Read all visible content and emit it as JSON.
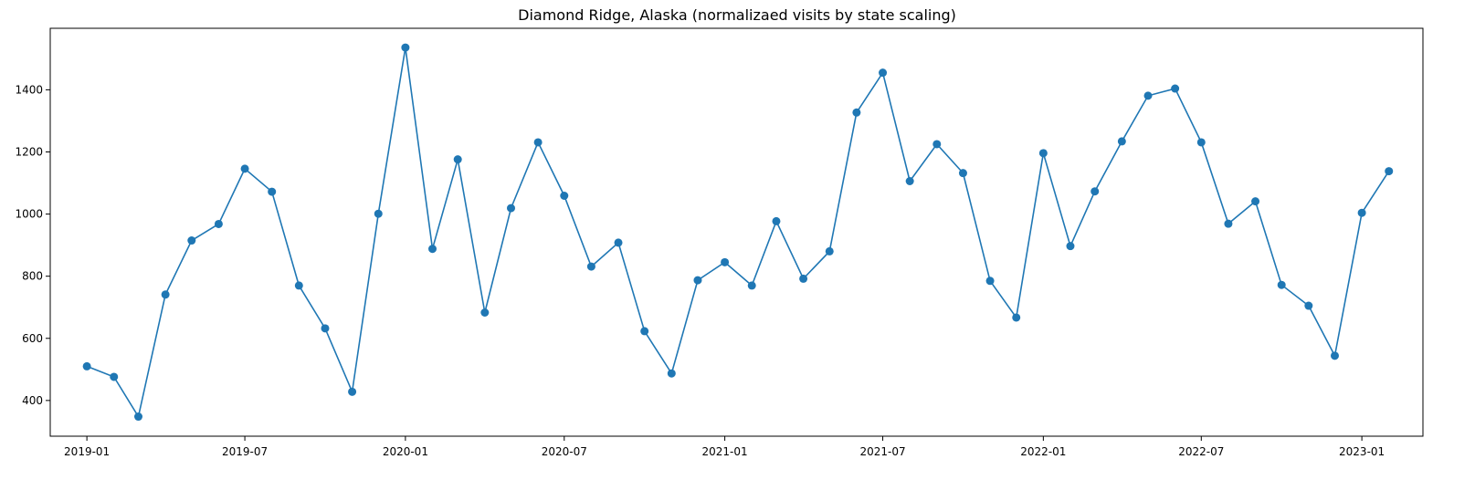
{
  "chart_data": {
    "type": "line",
    "title": "Diamond Ridge, Alaska (normalizaed visits by state scaling)",
    "xlabel": "",
    "ylabel": "",
    "x_type": "date",
    "xlim": [
      "2018-11-20",
      "2023-03-12"
    ],
    "ylim": [
      285,
      1598
    ],
    "x_ticks": [
      "2019-01-01",
      "2019-07-01",
      "2020-01-01",
      "2020-07-01",
      "2021-01-01",
      "2021-07-01",
      "2022-01-01",
      "2022-07-01",
      "2023-01-01"
    ],
    "x_tick_labels": [
      "2019-01",
      "2019-07",
      "2020-01",
      "2020-07",
      "2021-01",
      "2021-07",
      "2022-01",
      "2022-07",
      "2023-01"
    ],
    "y_ticks": [
      400,
      600,
      800,
      1000,
      1200,
      1400
    ],
    "y_tick_labels": [
      "400",
      "600",
      "800",
      "1000",
      "1200",
      "1400"
    ],
    "grid": false,
    "color": "#1f77b4",
    "marker": "circle",
    "x": [
      "2019-01-01",
      "2019-02-01",
      "2019-03-01",
      "2019-04-01",
      "2019-05-01",
      "2019-06-01",
      "2019-07-01",
      "2019-08-01",
      "2019-09-01",
      "2019-10-01",
      "2019-11-01",
      "2019-12-01",
      "2020-01-01",
      "2020-02-01",
      "2020-03-01",
      "2020-04-01",
      "2020-05-01",
      "2020-06-01",
      "2020-07-01",
      "2020-08-01",
      "2020-09-01",
      "2020-10-01",
      "2020-11-01",
      "2020-12-01",
      "2021-01-01",
      "2021-02-01",
      "2021-03-01",
      "2021-04-01",
      "2021-05-01",
      "2021-06-01",
      "2021-07-01",
      "2021-08-01",
      "2021-09-01",
      "2021-10-01",
      "2021-11-01",
      "2021-12-01",
      "2022-01-01",
      "2022-02-01",
      "2022-03-01",
      "2022-04-01",
      "2022-05-01",
      "2022-06-01",
      "2022-07-01",
      "2022-08-01",
      "2022-09-01",
      "2022-10-01",
      "2022-11-01",
      "2022-12-01",
      "2023-01-01",
      "2023-02-01"
    ],
    "series": [
      {
        "values": [
          510,
          476,
          348,
          741,
          915,
          968,
          1146,
          1072,
          770,
          632,
          428,
          1001,
          1536,
          888,
          1176,
          683,
          1019,
          1231,
          1059,
          831,
          908,
          623,
          487,
          787,
          845,
          770,
          977,
          792,
          880,
          1327,
          1455,
          1106,
          1225,
          1132,
          785,
          667,
          1196,
          897,
          1073,
          1234,
          1381,
          1404,
          1231,
          969,
          1041,
          772,
          705,
          544,
          1004,
          1138
        ]
      }
    ]
  }
}
